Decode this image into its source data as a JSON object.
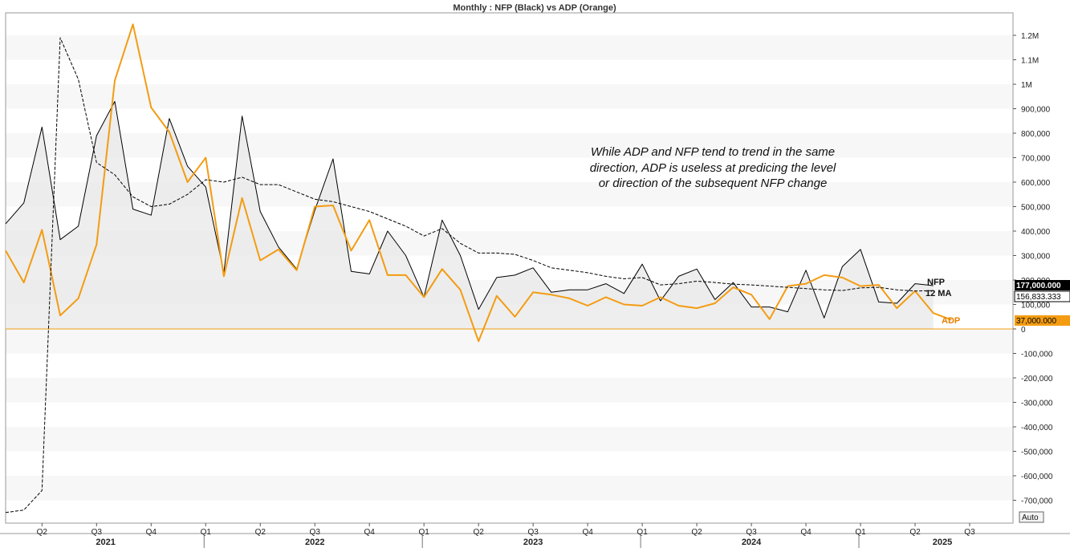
{
  "chart_data": {
    "type": "line",
    "title": "Monthly : NFP (Black) vs ADP (Orange)",
    "y_tick_labels": [
      "1.2M",
      "1.1M",
      "1M",
      "900,000",
      "800,000",
      "700,000",
      "600,000",
      "500,000",
      "400,000",
      "300,000",
      "200,000",
      "100,000",
      "0",
      "-100,000",
      "-200,000",
      "-300,000",
      "-400,000",
      "-500,000",
      "-600,000",
      "-700,000"
    ],
    "y_tick_values": [
      1200000,
      1100000,
      1000000,
      900000,
      800000,
      700000,
      600000,
      500000,
      400000,
      300000,
      200000,
      100000,
      0,
      -100000,
      -200000,
      -300000,
      -400000,
      -500000,
      -600000,
      -700000
    ],
    "ylim": [
      -790000,
      1330000
    ],
    "xlim": [
      0,
      55.5
    ],
    "quarter_labels": [
      "Q2",
      "Q3",
      "Q4",
      "Q1",
      "Q2",
      "Q3",
      "Q4",
      "Q1",
      "Q2",
      "Q3",
      "Q4",
      "Q1",
      "Q2",
      "Q3",
      "Q4",
      "Q1",
      "Q2",
      "Q3"
    ],
    "quarter_positions": [
      2,
      5,
      8,
      11,
      14,
      17,
      20,
      23,
      26,
      29,
      32,
      35,
      38,
      41,
      44,
      47,
      50,
      53
    ],
    "years": [
      "2021",
      "2022",
      "2023",
      "2024",
      "2025"
    ],
    "year_positions": [
      5.5,
      17,
      29,
      41,
      51.5
    ],
    "year_dividers": [
      11,
      23,
      35,
      47
    ],
    "series": [
      {
        "name": "NFP",
        "color": "#000000",
        "x_start": 0,
        "values": [
          430000,
          515000,
          825000,
          365000,
          420000,
          790000,
          930000,
          490000,
          465000,
          860000,
          665000,
          580000,
          230000,
          870000,
          480000,
          335000,
          245000,
          485000,
          695000,
          235000,
          225000,
          400000,
          300000,
          130000,
          445000,
          300000,
          80000,
          210000,
          220000,
          250000,
          150000,
          160000,
          160000,
          185000,
          145000,
          265000,
          115000,
          215000,
          245000,
          120000,
          190000,
          90000,
          90000,
          70000,
          240000,
          45000,
          255000,
          325000,
          110000,
          105000,
          185000,
          177000
        ]
      },
      {
        "name": "ADP",
        "color": "#f39c12",
        "x_start": 0,
        "values": [
          320000,
          190000,
          405000,
          55000,
          125000,
          345000,
          1015000,
          1245000,
          905000,
          805000,
          600000,
          700000,
          215000,
          535000,
          280000,
          325000,
          240000,
          500000,
          505000,
          320000,
          445000,
          220000,
          220000,
          130000,
          245000,
          160000,
          -50000,
          135000,
          50000,
          150000,
          140000,
          125000,
          95000,
          130000,
          100000,
          95000,
          130000,
          95000,
          85000,
          105000,
          170000,
          140000,
          40000,
          175000,
          185000,
          220000,
          210000,
          175000,
          180000,
          85000,
          155000,
          65000,
          37000
        ]
      },
      {
        "name": "12 MA",
        "color": "#000000",
        "style": "dashed",
        "x_start": 0,
        "values": [
          -750000,
          -740000,
          -660000,
          1190000,
          1020000,
          680000,
          630000,
          540000,
          500000,
          510000,
          550000,
          610000,
          600000,
          620000,
          590000,
          590000,
          560000,
          530000,
          520000,
          500000,
          480000,
          450000,
          420000,
          380000,
          410000,
          350000,
          310000,
          310000,
          305000,
          280000,
          250000,
          240000,
          230000,
          215000,
          205000,
          210000,
          180000,
          185000,
          195000,
          190000,
          183000,
          180000,
          175000,
          170000,
          165000,
          160000,
          157000,
          168000,
          170000,
          160000,
          155000,
          156833
        ]
      }
    ],
    "last_value_labels": {
      "nfp": "177,000.000",
      "ma": "156,833.333",
      "adp": "37,000.000"
    },
    "series_labels": {
      "nfp": "NFP",
      "ma": "12 MA",
      "adp": "ADP"
    },
    "annotation": [
      "While ADP and NFP tend to trend in the same",
      "direction, ADP is useless at predicing the level",
      "or direction of the subsequent NFP change"
    ],
    "zero_line_color": "#f39c12",
    "auto_button": "Auto"
  }
}
